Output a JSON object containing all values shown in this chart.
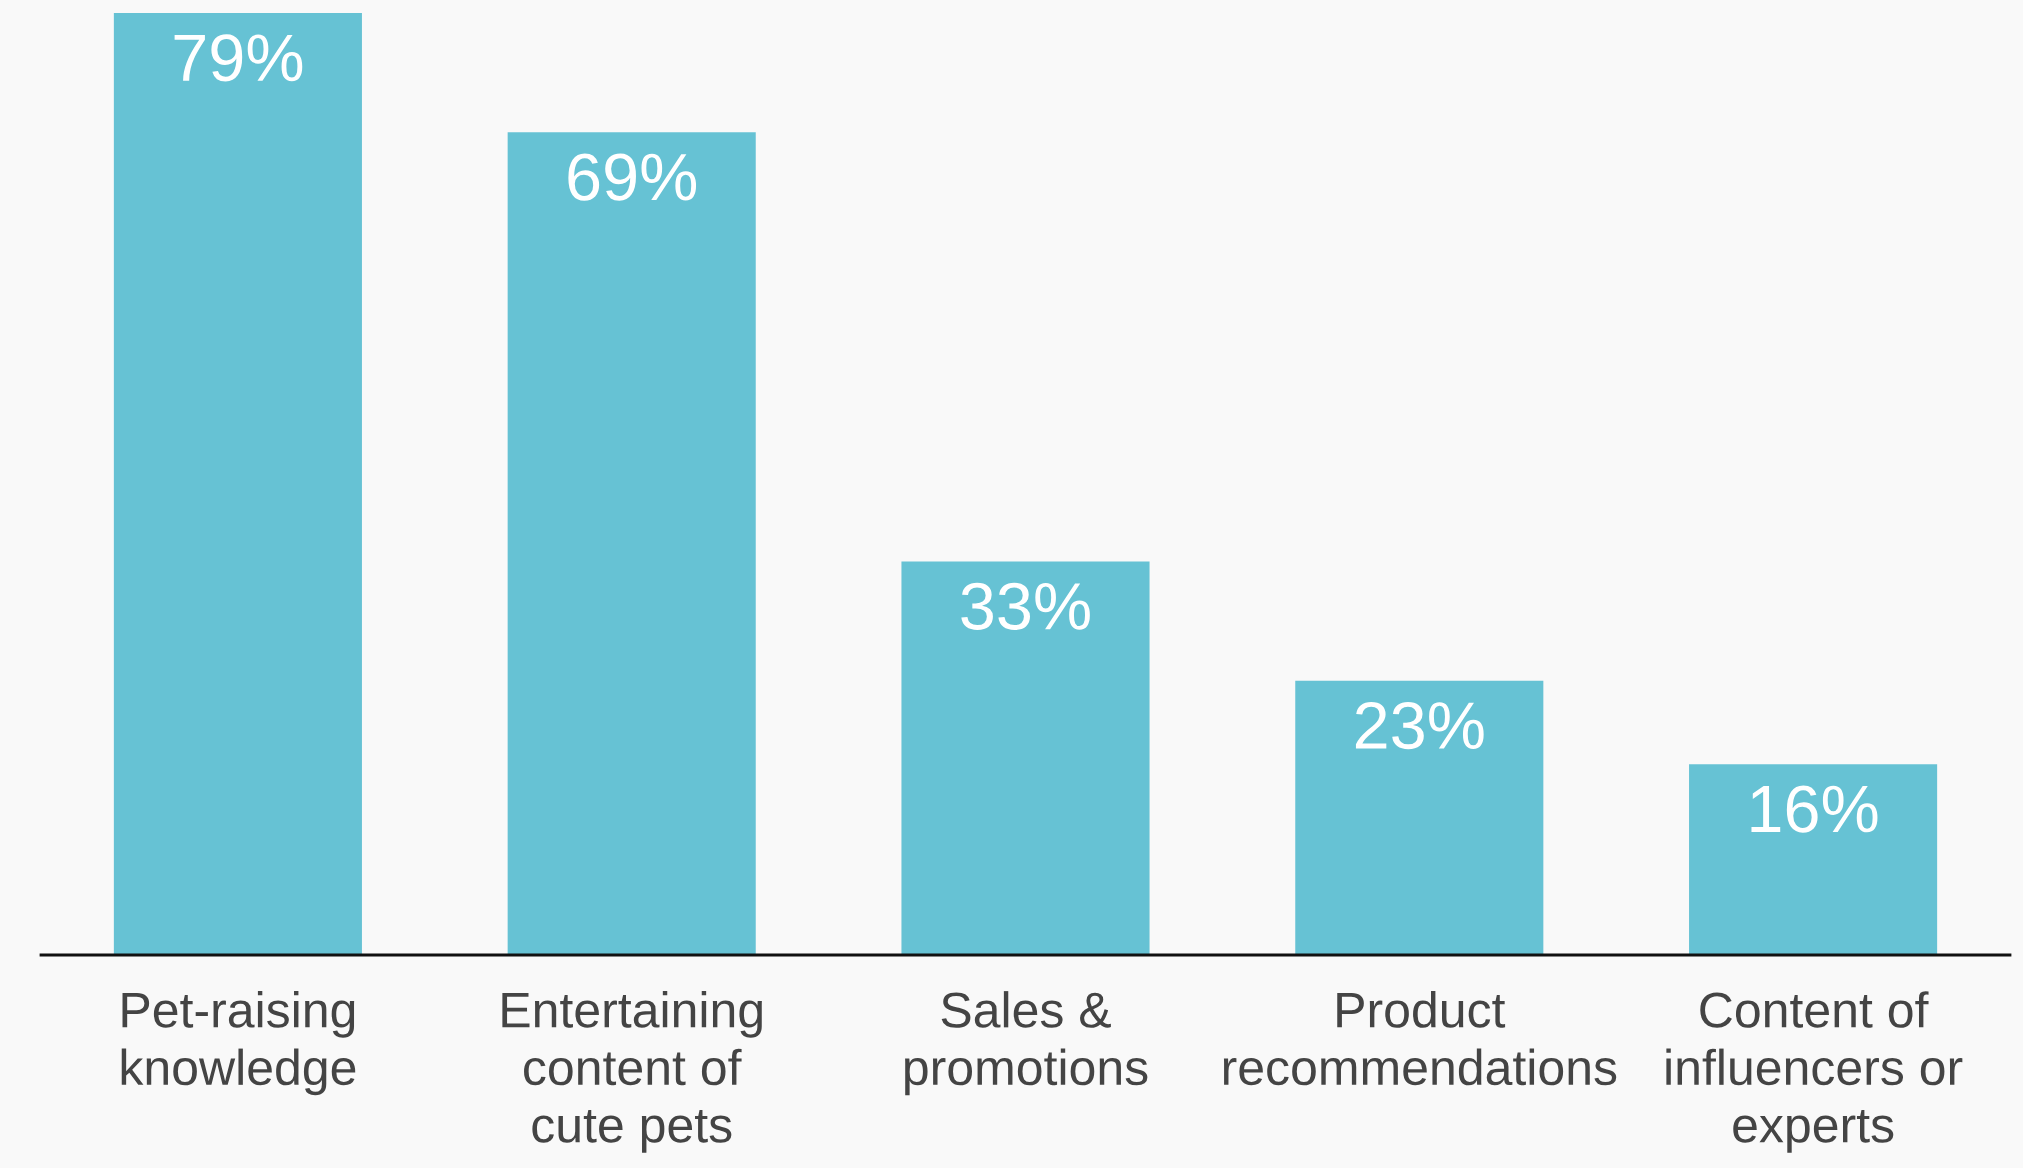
{
  "chart_data": {
    "type": "bar",
    "categories": [
      "Pet-raising\nknowledge",
      "Entertaining\ncontent of\ncute pets",
      "Sales &\npromotions",
      "Product\nrecommendations",
      "Content of\ninfluencers or\nexperts"
    ],
    "values": [
      79,
      69,
      33,
      23,
      16
    ],
    "value_labels": [
      "79%",
      "69%",
      "33%",
      "23%",
      "16%"
    ],
    "color": "#66c2d4"
  }
}
